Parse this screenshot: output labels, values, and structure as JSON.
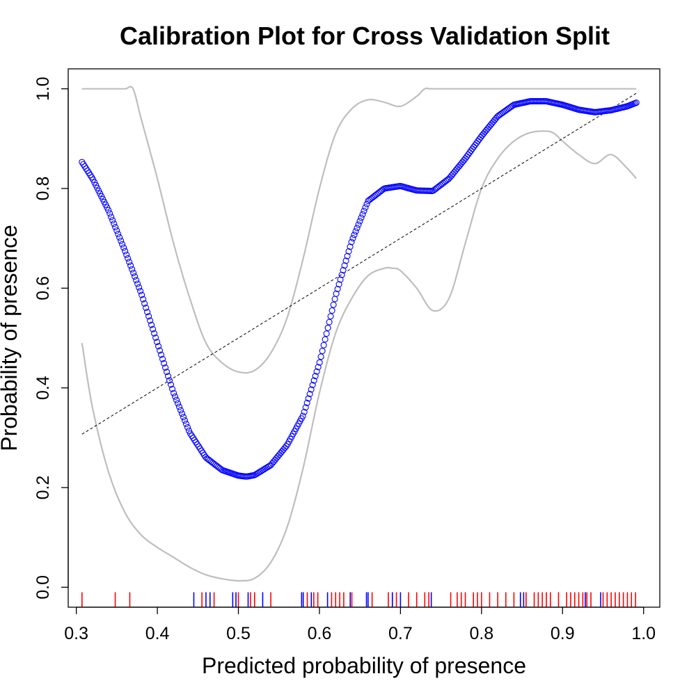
{
  "chart_data": {
    "type": "scatter",
    "title": "Calibration Plot for Cross Validation Split",
    "xlabel": "Predicted probability of presence",
    "ylabel": "Probability of presence",
    "xlim": [
      0.29,
      1.02
    ],
    "ylim": [
      -0.04,
      1.04
    ],
    "x_ticks": [
      0.3,
      0.4,
      0.5,
      0.6,
      0.7,
      0.8,
      0.9,
      1.0
    ],
    "x_tick_labels": [
      "0.3",
      "0.4",
      "0.5",
      "0.6",
      "0.7",
      "0.8",
      "0.9",
      "1.0"
    ],
    "y_ticks": [
      0.0,
      0.2,
      0.4,
      0.6,
      0.8,
      1.0
    ],
    "y_tick_labels": [
      "0.0",
      "0.2",
      "0.4",
      "0.6",
      "0.8",
      "1.0"
    ],
    "grid": false,
    "legend": "none",
    "colors": {
      "fitted_points": "#0000ff",
      "confidence_band": "#bebebe",
      "reference_line": "#000000",
      "rug_presence": "#ff0000",
      "rug_absence": "#0000ff"
    },
    "fitted_curve": {
      "x": [
        0.307,
        0.32,
        0.34,
        0.36,
        0.38,
        0.4,
        0.42,
        0.44,
        0.46,
        0.48,
        0.5,
        0.51,
        0.52,
        0.54,
        0.56,
        0.58,
        0.6,
        0.62,
        0.64,
        0.66,
        0.68,
        0.7,
        0.72,
        0.74,
        0.76,
        0.78,
        0.8,
        0.82,
        0.84,
        0.86,
        0.88,
        0.9,
        0.92,
        0.94,
        0.96,
        0.98,
        0.991
      ],
      "y": [
        0.853,
        0.82,
        0.755,
        0.675,
        0.59,
        0.49,
        0.39,
        0.31,
        0.26,
        0.235,
        0.224,
        0.222,
        0.225,
        0.245,
        0.285,
        0.345,
        0.45,
        0.585,
        0.695,
        0.775,
        0.8,
        0.805,
        0.796,
        0.795,
        0.82,
        0.86,
        0.905,
        0.945,
        0.968,
        0.975,
        0.975,
        0.968,
        0.958,
        0.953,
        0.957,
        0.965,
        0.972
      ]
    },
    "upper_band": {
      "x": [
        0.307,
        0.32,
        0.34,
        0.36,
        0.37,
        0.38,
        0.4,
        0.42,
        0.44,
        0.46,
        0.48,
        0.5,
        0.52,
        0.54,
        0.56,
        0.58,
        0.6,
        0.62,
        0.64,
        0.66,
        0.68,
        0.7,
        0.72,
        0.73,
        0.74,
        0.8,
        0.9,
        0.991
      ],
      "y": [
        1.0,
        1.0,
        1.0,
        1.0,
        1.0,
        0.94,
        0.82,
        0.69,
        0.58,
        0.49,
        0.45,
        0.432,
        0.435,
        0.47,
        0.54,
        0.66,
        0.8,
        0.91,
        0.96,
        0.978,
        0.973,
        0.965,
        0.985,
        1.0,
        1.0,
        1.0,
        1.0,
        1.0
      ]
    },
    "lower_band": {
      "x": [
        0.307,
        0.32,
        0.34,
        0.36,
        0.38,
        0.4,
        0.42,
        0.44,
        0.46,
        0.48,
        0.5,
        0.52,
        0.54,
        0.56,
        0.58,
        0.6,
        0.62,
        0.64,
        0.66,
        0.68,
        0.69,
        0.7,
        0.72,
        0.74,
        0.76,
        0.78,
        0.8,
        0.82,
        0.84,
        0.86,
        0.88,
        0.89,
        0.9,
        0.92,
        0.94,
        0.96,
        0.98,
        0.991
      ],
      "y": [
        0.49,
        0.36,
        0.23,
        0.15,
        0.105,
        0.08,
        0.06,
        0.04,
        0.025,
        0.017,
        0.013,
        0.018,
        0.05,
        0.12,
        0.24,
        0.39,
        0.51,
        0.58,
        0.625,
        0.64,
        0.64,
        0.635,
        0.6,
        0.555,
        0.58,
        0.69,
        0.8,
        0.86,
        0.895,
        0.912,
        0.915,
        0.91,
        0.895,
        0.868,
        0.85,
        0.868,
        0.84,
        0.82
      ]
    },
    "reference_line": {
      "x": [
        0.307,
        0.991
      ],
      "y": [
        0.307,
        0.991
      ]
    },
    "rug": {
      "presence": [
        0.307,
        0.348,
        0.366,
        0.455,
        0.47,
        0.5,
        0.515,
        0.52,
        0.54,
        0.585,
        0.593,
        0.598,
        0.615,
        0.62,
        0.625,
        0.63,
        0.64,
        0.665,
        0.685,
        0.69,
        0.695,
        0.71,
        0.72,
        0.73,
        0.735,
        0.762,
        0.77,
        0.775,
        0.78,
        0.79,
        0.795,
        0.8,
        0.81,
        0.82,
        0.83,
        0.84,
        0.855,
        0.865,
        0.87,
        0.875,
        0.88,
        0.885,
        0.895,
        0.905,
        0.91,
        0.915,
        0.92,
        0.925,
        0.93,
        0.935,
        0.95,
        0.955,
        0.96,
        0.965,
        0.97,
        0.975,
        0.98,
        0.985,
        0.99
      ],
      "absence": [
        0.445,
        0.46,
        0.465,
        0.493,
        0.497,
        0.512,
        0.53,
        0.578,
        0.58,
        0.59,
        0.61,
        0.638,
        0.658,
        0.66,
        0.69,
        0.7,
        0.738,
        0.848,
        0.852,
        0.928,
        0.947
      ]
    }
  }
}
